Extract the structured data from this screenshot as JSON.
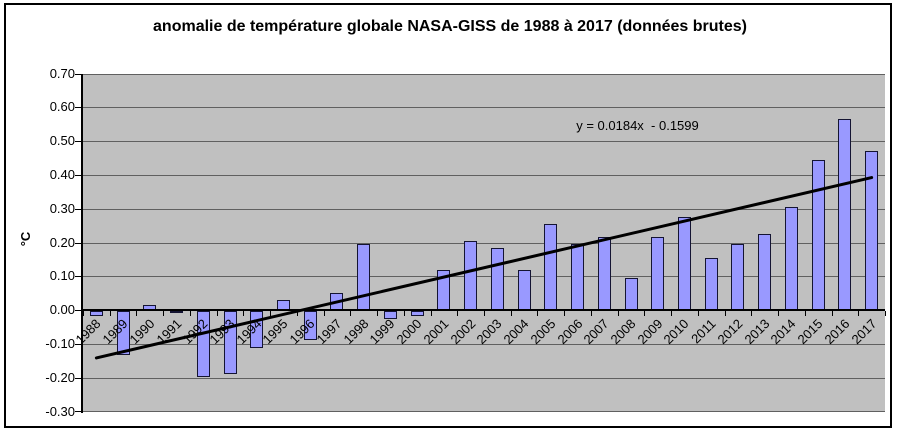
{
  "chart_data": {
    "type": "bar",
    "title": "anomalie de température globale NASA-GISS de 1988 à 2017 (données brutes)",
    "ylabel": "°C",
    "xlabel": "",
    "categories": [
      "1988",
      "1989",
      "1990",
      "1991",
      "1992",
      "1993",
      "1994",
      "1995",
      "1996",
      "1997",
      "1998",
      "1999",
      "2000",
      "2001",
      "2002",
      "2003",
      "2004",
      "2005",
      "2006",
      "2007",
      "2008",
      "2009",
      "2010",
      "2011",
      "2012",
      "2013",
      "2014",
      "2015",
      "2016",
      "2017"
    ],
    "values": [
      -0.015,
      -0.13,
      0.015,
      -0.005,
      -0.195,
      -0.185,
      -0.11,
      0.03,
      -0.085,
      0.05,
      0.195,
      -0.025,
      -0.015,
      0.12,
      0.205,
      0.185,
      0.12,
      0.255,
      0.195,
      0.215,
      0.095,
      0.215,
      0.275,
      0.155,
      0.195,
      0.225,
      0.305,
      0.445,
      0.565,
      0.47
    ],
    "ylim": [
      -0.3,
      0.7
    ],
    "ytick_step": 0.1,
    "ytick_labels": [
      "0.70",
      "0.60",
      "0.50",
      "0.40",
      "0.30",
      "0.20",
      "0.10",
      "0.00",
      "-0.10",
      "-0.20",
      "-0.30"
    ],
    "grid": true,
    "legend": false,
    "plot_background": "#C0C0C0",
    "gridline_color": "#606060",
    "bar_fill": "#9999FF",
    "bar_border": "#141432",
    "trendline": {
      "label": "y = 0.0184x  - 0.1599",
      "slope_per_index": 0.0184,
      "intercept": -0.1599,
      "color": "#000000"
    }
  }
}
